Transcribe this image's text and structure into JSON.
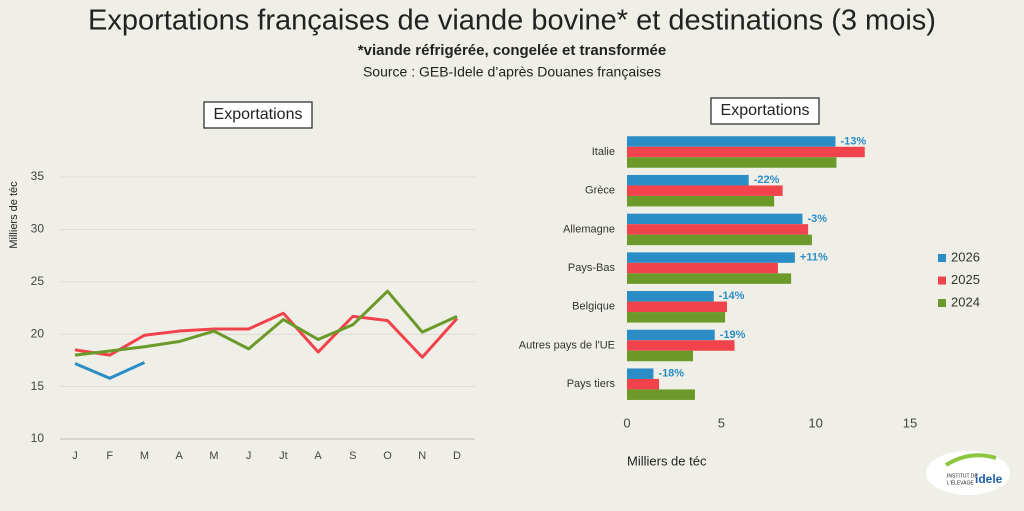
{
  "title": "Exportations françaises de viande bovine* et destinations (3 mois)",
  "subtitle": "*viande réfrigérée, congelée et transformée",
  "source": "Source : GEB-Idele d’après Douanes françaises",
  "logo": {
    "line1": "INSTITUT DE",
    "line2": "L'ÉLEVAGE",
    "name": "idele"
  },
  "chart_data": [
    {
      "type": "line",
      "title": "Exportations",
      "ylabel": "Milliers de téc",
      "categories": [
        "J",
        "F",
        "M",
        "A",
        "M",
        "J",
        "Jt",
        "A",
        "S",
        "O",
        "N",
        "D"
      ],
      "ylim": [
        10,
        35
      ],
      "yticks": [
        10,
        15,
        20,
        25,
        30,
        35
      ],
      "grid": true,
      "series": [
        {
          "name": "2026",
          "color": "#2b8dc6",
          "values": [
            17.2,
            15.8,
            17.3,
            null,
            null,
            null,
            null,
            null,
            null,
            null,
            null,
            null
          ]
        },
        {
          "name": "2025",
          "color": "#f0434c",
          "values": [
            18.5,
            18.0,
            19.9,
            20.3,
            20.5,
            20.5,
            22.0,
            18.3,
            21.7,
            21.3,
            17.8,
            21.5
          ]
        },
        {
          "name": "2024",
          "color": "#6b9a2a",
          "values": [
            18.0,
            18.4,
            18.8,
            19.3,
            20.3,
            18.6,
            21.4,
            19.5,
            20.9,
            24.1,
            20.2,
            21.7
          ]
        }
      ]
    },
    {
      "type": "hbar",
      "title": "Exportations",
      "xlabel": "Milliers de téc",
      "categories": [
        "Italie",
        "Grèce",
        "Allemagne",
        "Pays-Bas",
        "Belgique",
        "Autres pays de l'UE",
        "Pays tiers"
      ],
      "xlim": [
        0,
        15
      ],
      "xticks": [
        0,
        5,
        10,
        15
      ],
      "legend": "right",
      "changes": [
        "-13%",
        "-22%",
        "-3%",
        "+11%",
        "-14%",
        "-19%",
        "-18%"
      ],
      "series": [
        {
          "name": "2026",
          "color": "#2b8dc6",
          "values": [
            11.05,
            6.45,
            9.3,
            8.9,
            4.6,
            4.65,
            1.4
          ]
        },
        {
          "name": "2025",
          "color": "#f0434c",
          "values": [
            12.6,
            8.25,
            9.6,
            8.0,
            5.3,
            5.7,
            1.7
          ]
        },
        {
          "name": "2024",
          "color": "#6b9a2a",
          "values": [
            11.1,
            7.8,
            9.8,
            8.7,
            5.2,
            3.5,
            3.6
          ]
        }
      ]
    }
  ]
}
